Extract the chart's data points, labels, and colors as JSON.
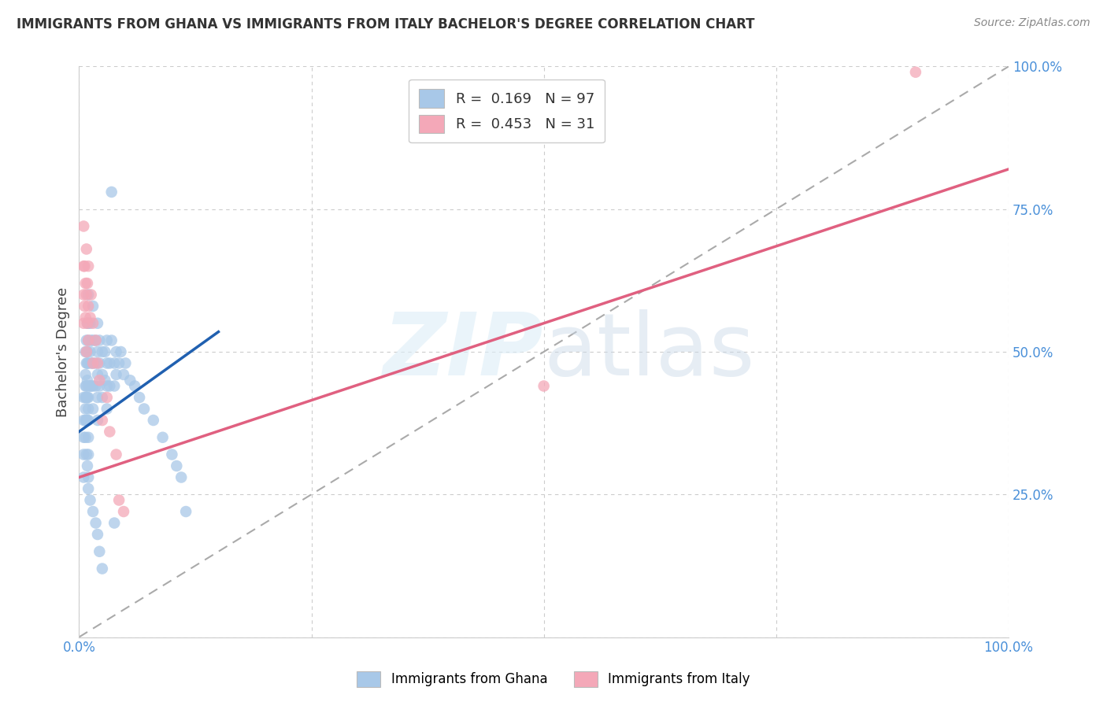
{
  "title": "IMMIGRANTS FROM GHANA VS IMMIGRANTS FROM ITALY BACHELOR'S DEGREE CORRELATION CHART",
  "source": "Source: ZipAtlas.com",
  "ylabel": "Bachelor's Degree",
  "ghana_R": 0.169,
  "ghana_N": 97,
  "italy_R": 0.453,
  "italy_N": 31,
  "ghana_color": "#a8c8e8",
  "italy_color": "#f4a8b8",
  "ghana_line_color": "#2060b0",
  "italy_line_color": "#e06080",
  "diagonal_color": "#aaaaaa",
  "ghana_scatter_x": [
    0.005,
    0.005,
    0.005,
    0.005,
    0.005,
    0.007,
    0.007,
    0.007,
    0.007,
    0.007,
    0.007,
    0.008,
    0.008,
    0.008,
    0.008,
    0.008,
    0.009,
    0.009,
    0.009,
    0.009,
    0.009,
    0.009,
    0.01,
    0.01,
    0.01,
    0.01,
    0.01,
    0.01,
    0.01,
    0.01,
    0.01,
    0.01,
    0.012,
    0.012,
    0.012,
    0.013,
    0.013,
    0.013,
    0.015,
    0.015,
    0.015,
    0.015,
    0.015,
    0.018,
    0.018,
    0.018,
    0.02,
    0.02,
    0.02,
    0.02,
    0.02,
    0.022,
    0.022,
    0.022,
    0.025,
    0.025,
    0.025,
    0.028,
    0.028,
    0.03,
    0.03,
    0.03,
    0.03,
    0.033,
    0.033,
    0.035,
    0.038,
    0.038,
    0.04,
    0.04,
    0.043,
    0.045,
    0.048,
    0.05,
    0.055,
    0.06,
    0.065,
    0.07,
    0.08,
    0.09,
    0.1,
    0.105,
    0.11,
    0.115,
    0.035,
    0.038,
    0.007,
    0.008,
    0.009,
    0.01,
    0.01,
    0.012,
    0.015,
    0.018,
    0.02,
    0.022,
    0.025
  ],
  "ghana_scatter_y": [
    0.42,
    0.38,
    0.35,
    0.32,
    0.28,
    0.5,
    0.46,
    0.44,
    0.42,
    0.4,
    0.38,
    0.52,
    0.48,
    0.44,
    0.42,
    0.38,
    0.55,
    0.5,
    0.48,
    0.45,
    0.42,
    0.38,
    0.6,
    0.55,
    0.52,
    0.48,
    0.44,
    0.42,
    0.4,
    0.38,
    0.35,
    0.32,
    0.55,
    0.5,
    0.44,
    0.52,
    0.48,
    0.44,
    0.58,
    0.52,
    0.48,
    0.44,
    0.4,
    0.52,
    0.48,
    0.44,
    0.55,
    0.5,
    0.46,
    0.42,
    0.38,
    0.52,
    0.48,
    0.44,
    0.5,
    0.46,
    0.42,
    0.5,
    0.45,
    0.52,
    0.48,
    0.44,
    0.4,
    0.48,
    0.44,
    0.52,
    0.48,
    0.44,
    0.5,
    0.46,
    0.48,
    0.5,
    0.46,
    0.48,
    0.45,
    0.44,
    0.42,
    0.4,
    0.38,
    0.35,
    0.32,
    0.3,
    0.28,
    0.22,
    0.78,
    0.2,
    0.35,
    0.32,
    0.3,
    0.28,
    0.26,
    0.24,
    0.22,
    0.2,
    0.18,
    0.15,
    0.12
  ],
  "italy_scatter_x": [
    0.005,
    0.005,
    0.005,
    0.005,
    0.006,
    0.006,
    0.007,
    0.007,
    0.008,
    0.008,
    0.008,
    0.009,
    0.009,
    0.01,
    0.01,
    0.01,
    0.012,
    0.013,
    0.015,
    0.015,
    0.018,
    0.02,
    0.022,
    0.025,
    0.03,
    0.033,
    0.04,
    0.043,
    0.048,
    0.5,
    0.9
  ],
  "italy_scatter_y": [
    0.72,
    0.65,
    0.6,
    0.55,
    0.65,
    0.58,
    0.62,
    0.56,
    0.68,
    0.6,
    0.5,
    0.62,
    0.55,
    0.65,
    0.58,
    0.52,
    0.56,
    0.6,
    0.55,
    0.48,
    0.52,
    0.48,
    0.45,
    0.38,
    0.42,
    0.36,
    0.32,
    0.24,
    0.22,
    0.44,
    0.99
  ],
  "ghana_line": [
    0.0,
    0.36,
    0.15,
    0.535
  ],
  "italy_line": [
    0.0,
    0.28,
    1.0,
    0.82
  ],
  "diagonal_line": [
    0.0,
    0.0,
    1.0,
    1.0
  ]
}
